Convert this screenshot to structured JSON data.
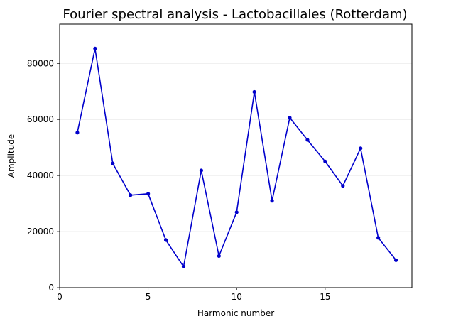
{
  "chart_data": {
    "type": "line",
    "title": "Fourier spectral analysis - Lactobacillales (Rotterdam)",
    "xlabel": "Harmonic number",
    "ylabel": "Amplitude",
    "xlim": [
      0,
      19.9
    ],
    "ylim": [
      0,
      94000
    ],
    "xticks": [
      0,
      5,
      10,
      15
    ],
    "xtick_labels": [
      "0",
      "5",
      "10",
      "15"
    ],
    "yticks": [
      0,
      20000,
      40000,
      60000,
      80000
    ],
    "ytick_labels": [
      "0",
      "20000",
      "40000",
      "60000",
      "80000"
    ],
    "grid": "horizontal",
    "color": "#0000cc",
    "series": [
      {
        "x": [
          1,
          2,
          3,
          4,
          5,
          6,
          7,
          8,
          9,
          10,
          11,
          12,
          13,
          14,
          15,
          16,
          17,
          18,
          19
        ],
        "values": [
          55300,
          85300,
          44300,
          33000,
          33500,
          17000,
          7500,
          41800,
          11300,
          26900,
          69800,
          31000,
          60600,
          52700,
          45000,
          36300,
          49700,
          17800,
          9800
        ]
      }
    ]
  }
}
